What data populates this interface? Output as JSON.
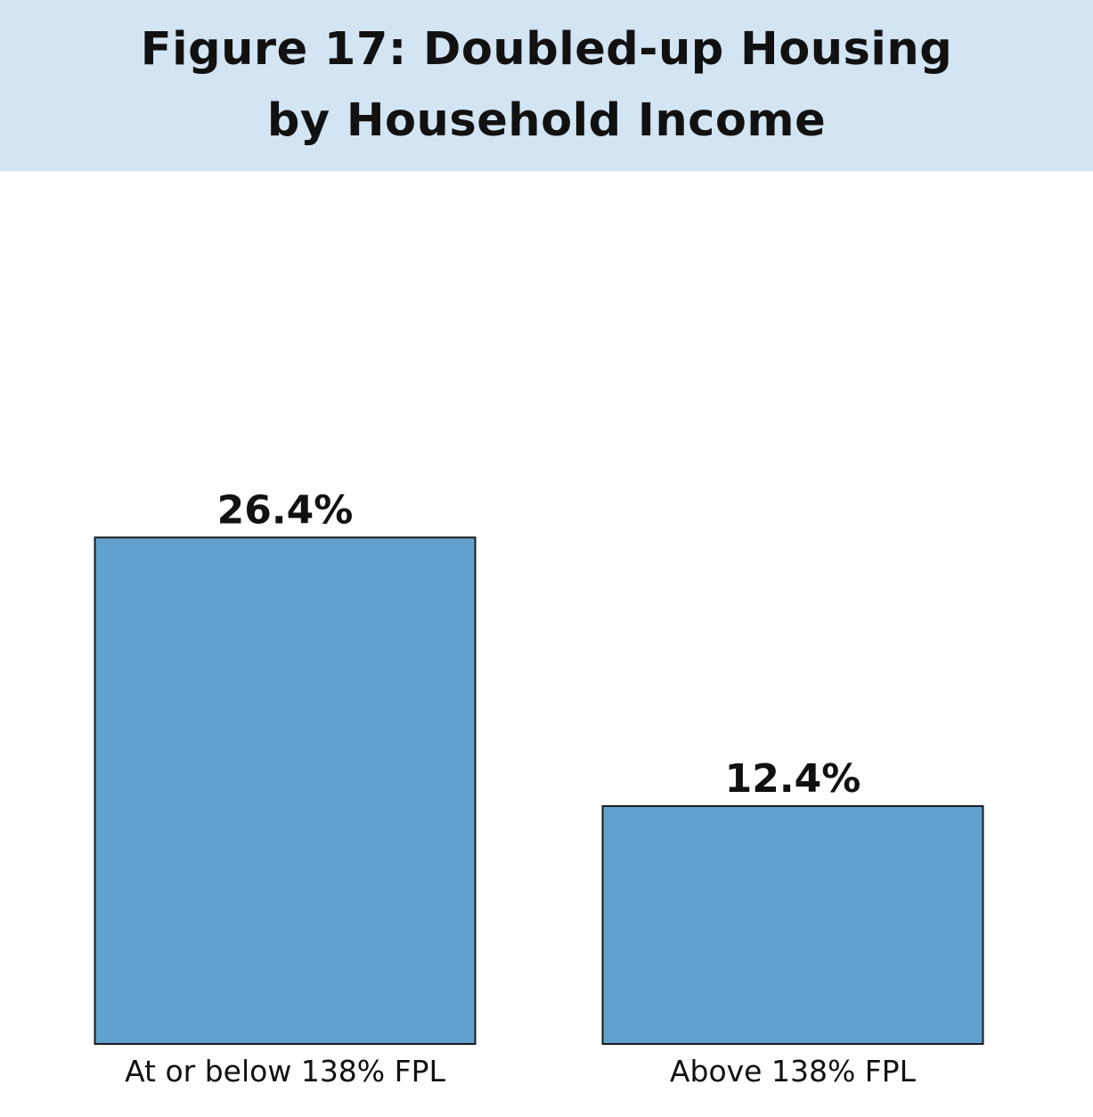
{
  "title": "Figure 17: Doubled-up Housing by Household Income",
  "colors": {
    "title_background": "#d3e4f3",
    "bar_fill": "#61a1cd",
    "bar_stroke": "#1a1a1a",
    "text": "#111111"
  },
  "chart_data": {
    "type": "bar",
    "title": "Figure 17: Doubled-up Housing by Household Income",
    "categories": [
      "At or below 138% FPL",
      "Above 138% FPL"
    ],
    "values": [
      26.4,
      12.4
    ],
    "data_labels": [
      "26.4%",
      "12.4%"
    ],
    "unit": "%",
    "xlabel": "",
    "ylabel": "",
    "ylim": [
      0,
      45.5
    ],
    "grid": false,
    "legend": "none",
    "y_axis_visible": false
  }
}
